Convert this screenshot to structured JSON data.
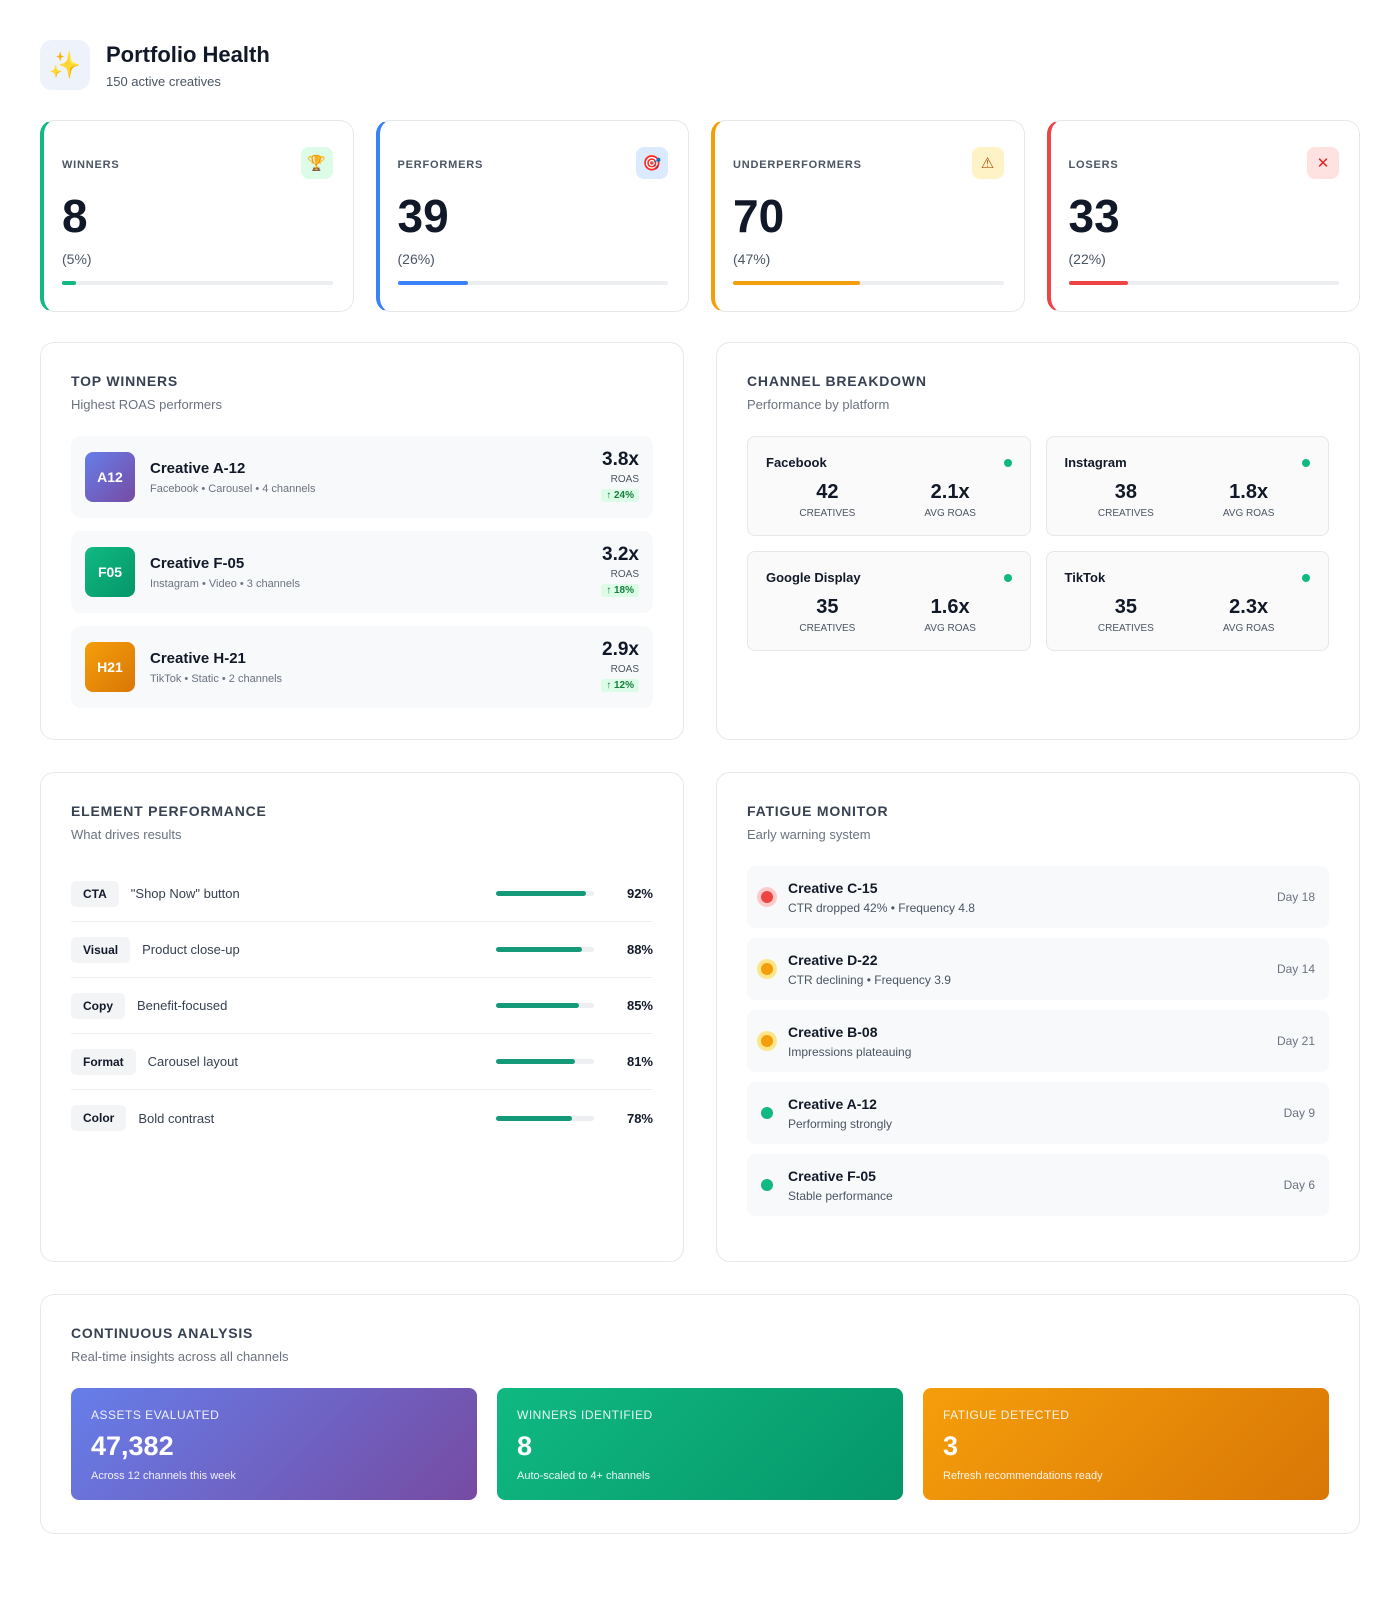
{
  "header": {
    "icon": "sparkles-icon",
    "title": "Portfolio Health",
    "subtitle": "150 active creatives"
  },
  "stats": [
    {
      "label": "WINNERS",
      "value": "8",
      "pct": "(5%)",
      "fraction": 0.05,
      "color": "#10b981",
      "icon": "🏆",
      "icon_name": "trophy-icon",
      "icon_bg": "#dcfce7",
      "icon_color": "#b45309"
    },
    {
      "label": "PERFORMERS",
      "value": "39",
      "pct": "(26%)",
      "fraction": 0.26,
      "color": "#3b82f6",
      "icon": "🎯",
      "icon_name": "target-icon",
      "icon_bg": "#dbeafe",
      "icon_color": "#dc2626"
    },
    {
      "label": "UNDERPERFORMERS",
      "value": "70",
      "pct": "(47%)",
      "fraction": 0.47,
      "color": "#f59e0b",
      "icon": "⚠",
      "icon_name": "warning-icon",
      "icon_bg": "#fef3c7",
      "icon_color": "#b45309"
    },
    {
      "label": "LOSERS",
      "value": "33",
      "pct": "(22%)",
      "fraction": 0.22,
      "color": "#ef4444",
      "icon": "✕",
      "icon_name": "close-icon",
      "icon_bg": "#fee2e2",
      "icon_color": "#dc2626"
    }
  ],
  "top_winners": {
    "title": "TOP WINNERS",
    "subtitle": "Highest ROAS performers",
    "items": [
      {
        "badge": "A12",
        "name": "Creative A-12",
        "meta": "Facebook • Carousel • 4 channels",
        "roas": "3.8x",
        "roas_label": "ROAS",
        "delta": "↑ 24%",
        "gradient": [
          "#667eea",
          "#764ba2"
        ]
      },
      {
        "badge": "F05",
        "name": "Creative F-05",
        "meta": "Instagram • Video • 3 channels",
        "roas": "3.2x",
        "roas_label": "ROAS",
        "delta": "↑ 18%",
        "gradient": [
          "#10b981",
          "#059669"
        ]
      },
      {
        "badge": "H21",
        "name": "Creative H-21",
        "meta": "TikTok • Static • 2 channels",
        "roas": "2.9x",
        "roas_label": "ROAS",
        "delta": "↑ 12%",
        "gradient": [
          "#f59e0b",
          "#d97706"
        ]
      }
    ]
  },
  "channels": {
    "title": "CHANNEL BREAKDOWN",
    "subtitle": "Performance by platform",
    "items": [
      {
        "name": "Facebook",
        "creatives": "42",
        "creatives_label": "CREATIVES",
        "roas": "2.1x",
        "roas_label": "AVG ROAS"
      },
      {
        "name": "Instagram",
        "creatives": "38",
        "creatives_label": "CREATIVES",
        "roas": "1.8x",
        "roas_label": "AVG ROAS"
      },
      {
        "name": "Google Display",
        "creatives": "35",
        "creatives_label": "CREATIVES",
        "roas": "1.6x",
        "roas_label": "AVG ROAS"
      },
      {
        "name": "TikTok",
        "creatives": "35",
        "creatives_label": "CREATIVES",
        "roas": "2.3x",
        "roas_label": "AVG ROAS"
      }
    ]
  },
  "elements": {
    "title": "ELEMENT PERFORMANCE",
    "subtitle": "What drives results",
    "items": [
      {
        "tag": "CTA",
        "desc": "\"Shop Now\" button",
        "pct": "92%",
        "value": 0.92
      },
      {
        "tag": "Visual",
        "desc": "Product close-up",
        "pct": "88%",
        "value": 0.88
      },
      {
        "tag": "Copy",
        "desc": "Benefit-focused",
        "pct": "85%",
        "value": 0.85
      },
      {
        "tag": "Format",
        "desc": "Carousel layout",
        "pct": "81%",
        "value": 0.81
      },
      {
        "tag": "Color",
        "desc": "Bold contrast",
        "pct": "78%",
        "value": 0.78
      }
    ]
  },
  "fatigue": {
    "title": "FATIGUE MONITOR",
    "subtitle": "Early warning system",
    "items": [
      {
        "name": "Creative C-15",
        "desc": "CTR dropped 42% • Frequency 4.8",
        "day": "Day 18",
        "status": "critical",
        "color": "#ef4444",
        "ring": "#fecaca"
      },
      {
        "name": "Creative D-22",
        "desc": "CTR declining • Frequency 3.9",
        "day": "Day 14",
        "status": "warning",
        "color": "#f59e0b",
        "ring": "#fde68a"
      },
      {
        "name": "Creative B-08",
        "desc": "Impressions plateauing",
        "day": "Day 21",
        "status": "warning",
        "color": "#f59e0b",
        "ring": "#fde68a"
      },
      {
        "name": "Creative A-12",
        "desc": "Performing strongly",
        "day": "Day 9",
        "status": "healthy",
        "color": "#10b981",
        "ring": "#f8f9fa"
      },
      {
        "name": "Creative F-05",
        "desc": "Stable performance",
        "day": "Day 6",
        "status": "healthy",
        "color": "#10b981",
        "ring": "#f8f9fa"
      }
    ]
  },
  "analysis": {
    "title": "CONTINUOUS ANALYSIS",
    "subtitle": "Real-time insights across all channels",
    "items": [
      {
        "label": "ASSETS EVALUATED",
        "value": "47,382",
        "sub": "Across 12 channels this week",
        "gradient": [
          "#667eea",
          "#764ba2"
        ]
      },
      {
        "label": "WINNERS IDENTIFIED",
        "value": "8",
        "sub": "Auto-scaled to 4+ channels",
        "gradient": [
          "#10b981",
          "#059669"
        ]
      },
      {
        "label": "FATIGUE DETECTED",
        "value": "3",
        "sub": "Refresh recommendations ready",
        "gradient": [
          "#f59e0b",
          "#d97706"
        ]
      }
    ]
  }
}
